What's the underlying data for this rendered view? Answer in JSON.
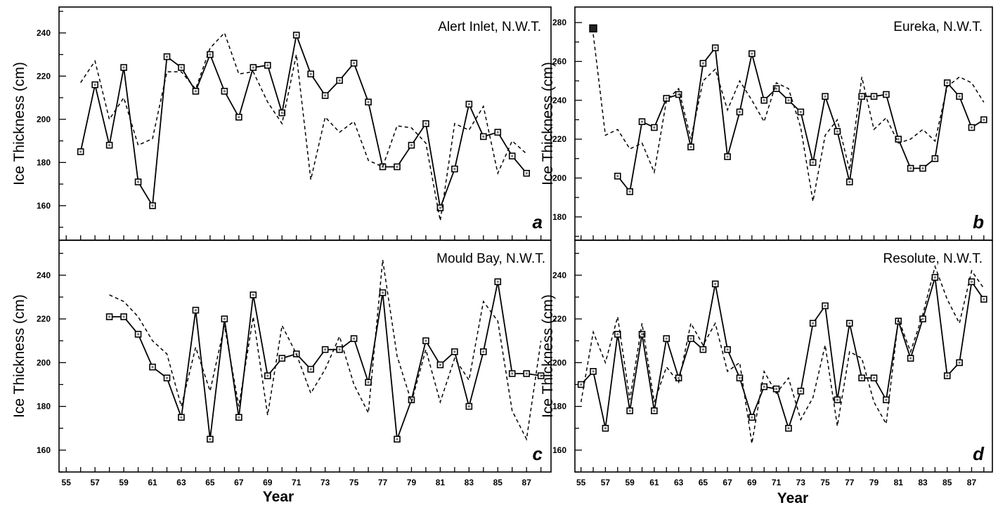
{
  "figure": {
    "xlabel": "Year",
    "ylabel": "Ice Thickness (cm)"
  },
  "chart_data": [
    {
      "type": "line",
      "station": "Alert Inlet, N.W.T.",
      "panel_label": "a",
      "xlabel": "",
      "ylabel": "Ice Thickness (cm)",
      "xlim": [
        54.5,
        88.7
      ],
      "ylim": [
        144,
        252
      ],
      "y_ticks": [
        160,
        180,
        200,
        220,
        240
      ],
      "x_ticks": [],
      "series": [
        {
          "style": "solid-squares",
          "x": [
            56,
            57,
            58,
            59,
            60,
            61,
            62,
            63,
            64,
            65,
            66,
            67,
            68,
            69,
            70,
            71,
            72,
            73,
            74,
            75,
            76,
            77,
            78,
            79,
            80,
            81,
            82,
            83,
            84,
            85,
            86,
            87
          ],
          "y": [
            185,
            216,
            188,
            224,
            171,
            160,
            229,
            224,
            213,
            230,
            213,
            201,
            224,
            225,
            203,
            239,
            221,
            211,
            218,
            226,
            208,
            178,
            178,
            188,
            198,
            159,
            177,
            207,
            192,
            194,
            183,
            175
          ]
        },
        {
          "style": "dashed",
          "x": [
            56,
            57,
            58,
            59,
            60,
            61,
            62,
            63,
            64,
            65,
            66,
            67,
            68,
            69,
            70,
            71,
            72,
            73,
            74,
            75,
            76,
            77,
            78,
            79,
            80,
            81,
            82,
            83,
            84,
            85,
            86,
            87
          ],
          "y": [
            217,
            227,
            200,
            210,
            188,
            191,
            222,
            222,
            214,
            233,
            240,
            221,
            222,
            208,
            198,
            230,
            172,
            201,
            194,
            199,
            181,
            178,
            197,
            196,
            189,
            153,
            198,
            195,
            206,
            175,
            190,
            184
          ]
        }
      ]
    },
    {
      "type": "line",
      "station": "Eureka, N.W.T.",
      "panel_label": "b",
      "xlabel": "",
      "ylabel": "Ice Thickness (cm)",
      "xlim": [
        54.5,
        88.7
      ],
      "ylim": [
        168,
        288
      ],
      "y_ticks": [
        180,
        200,
        220,
        240,
        260,
        280
      ],
      "x_ticks": [],
      "series": [
        {
          "style": "solid-squares",
          "x": [
            58,
            59,
            60,
            61,
            62,
            63,
            64,
            65,
            66,
            67,
            68,
            69,
            70,
            71,
            72,
            73,
            74,
            75,
            76,
            77,
            78,
            79,
            80,
            81,
            82,
            83,
            84,
            85,
            86,
            87,
            88
          ],
          "y": [
            201,
            193,
            229,
            226,
            241,
            243,
            216,
            259,
            267,
            211,
            234,
            264,
            240,
            246,
            240,
            234,
            208,
            242,
            224,
            198,
            242,
            242,
            243,
            220,
            205,
            205,
            210,
            249,
            242,
            226,
            230
          ]
        },
        {
          "style": "dashed",
          "x": [
            56,
            57,
            58,
            59,
            60,
            61,
            62,
            63,
            64,
            65,
            66,
            67,
            68,
            69,
            70,
            71,
            72,
            73,
            74,
            75,
            76,
            77,
            78,
            79,
            80,
            81,
            82,
            83,
            84,
            85,
            86,
            87,
            88
          ],
          "y": [
            274,
            222,
            225,
            215,
            218,
            203,
            240,
            246,
            220,
            250,
            256,
            235,
            250,
            240,
            229,
            249,
            246,
            226,
            188,
            222,
            230,
            204,
            252,
            225,
            231,
            218,
            220,
            225,
            219,
            247,
            252,
            249,
            239
          ]
        },
        {
          "style": "filled-square",
          "x": [
            56
          ],
          "y": [
            277
          ]
        }
      ]
    },
    {
      "type": "line",
      "station": "Mould Bay, N.W.T.",
      "panel_label": "c",
      "xlabel": "Year",
      "ylabel": "Ice Thickness (cm)",
      "xlim": [
        54.5,
        88.7
      ],
      "ylim": [
        150,
        256
      ],
      "y_ticks": [
        160,
        180,
        200,
        220,
        240
      ],
      "x_ticks": [
        "55",
        "57",
        "59",
        "61",
        "63",
        "65",
        "67",
        "69",
        "71",
        "73",
        "75",
        "77",
        "79",
        "81",
        "83",
        "85",
        "87"
      ],
      "series": [
        {
          "style": "solid-squares",
          "x": [
            58,
            59,
            60,
            61,
            62,
            63,
            64,
            65,
            66,
            67,
            68,
            69,
            70,
            71,
            72,
            73,
            74,
            75,
            76,
            77,
            78,
            79,
            80,
            81,
            82,
            83,
            84,
            85,
            86,
            87,
            88
          ],
          "y": [
            221,
            221,
            213,
            198,
            193,
            175,
            224,
            165,
            220,
            175,
            231,
            194,
            202,
            204,
            197,
            206,
            206,
            211,
            191,
            232,
            165,
            183,
            210,
            199,
            205,
            180,
            205,
            237,
            195,
            195,
            194
          ]
        },
        {
          "style": "dashed",
          "x": [
            58,
            59,
            60,
            61,
            62,
            63,
            64,
            65,
            66,
            67,
            68,
            69,
            70,
            71,
            72,
            73,
            74,
            75,
            76,
            77,
            78,
            79,
            80,
            81,
            82,
            83,
            84,
            85,
            86,
            87,
            88
          ],
          "y": [
            231,
            228,
            221,
            210,
            204,
            180,
            207,
            187,
            217,
            180,
            221,
            176,
            217,
            204,
            186,
            197,
            212,
            190,
            177,
            247,
            203,
            182,
            206,
            182,
            202,
            192,
            228,
            219,
            178,
            165,
            210
          ]
        }
      ]
    },
    {
      "type": "line",
      "station": "Resolute, N.W.T.",
      "panel_label": "d",
      "xlabel": "Year",
      "ylabel": "Ice Thickness (cm)",
      "xlim": [
        54.5,
        88.7
      ],
      "ylim": [
        150,
        256
      ],
      "y_ticks": [
        160,
        180,
        200,
        220,
        240
      ],
      "x_ticks": [
        "55",
        "57",
        "59",
        "61",
        "63",
        "65",
        "67",
        "69",
        "71",
        "73",
        "75",
        "77",
        "79",
        "81",
        "83",
        "85",
        "87"
      ],
      "series": [
        {
          "style": "solid-squares",
          "x": [
            55,
            56,
            57,
            58,
            59,
            60,
            61,
            62,
            63,
            64,
            65,
            66,
            67,
            68,
            69,
            70,
            71,
            72,
            73,
            74,
            75,
            76,
            77,
            78,
            79,
            80,
            81,
            82,
            83,
            84,
            85,
            86,
            87,
            88
          ],
          "y": [
            190,
            196,
            170,
            213,
            178,
            213,
            178,
            211,
            193,
            211,
            206,
            236,
            206,
            193,
            175,
            189,
            188,
            170,
            187,
            218,
            226,
            183,
            218,
            193,
            193,
            183,
            219,
            202,
            220,
            239,
            194,
            200,
            237,
            229
          ]
        },
        {
          "style": "dashed",
          "x": [
            55,
            56,
            57,
            58,
            59,
            60,
            61,
            62,
            63,
            64,
            65,
            66,
            67,
            68,
            69,
            70,
            71,
            72,
            73,
            74,
            75,
            76,
            77,
            78,
            79,
            80,
            81,
            82,
            83,
            84,
            85,
            86,
            87,
            88
          ],
          "y": [
            182,
            214,
            200,
            221,
            183,
            218,
            182,
            198,
            191,
            218,
            208,
            218,
            196,
            200,
            163,
            196,
            186,
            193,
            174,
            184,
            208,
            171,
            205,
            202,
            182,
            172,
            220,
            205,
            222,
            244,
            229,
            218,
            242,
            234
          ]
        }
      ]
    }
  ]
}
